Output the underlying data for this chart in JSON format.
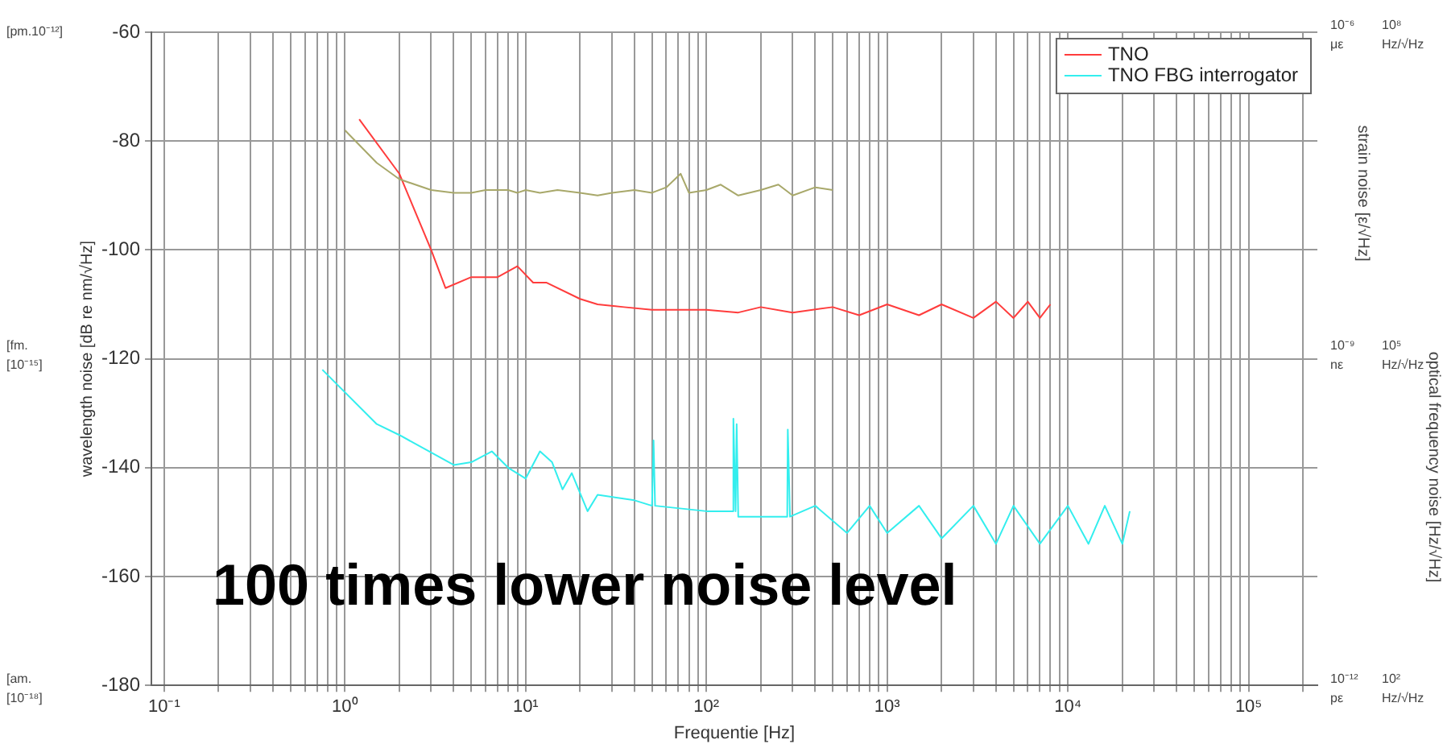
{
  "chart_data": {
    "type": "line",
    "xlabel": "Frequentie [Hz]",
    "ylabel": "wavelength noise [dB re nm/√Hz]",
    "y2label": "strain noise [ε/√Hz]",
    "y3label": "optical frequency noise [Hz/√Hz]",
    "log": "x",
    "grid": true,
    "legend": "top right",
    "marker": "none",
    "line_style": "solid",
    "xlim": [
      0.085,
      240000
    ],
    "xticks": [
      {
        "value": 0.1,
        "label": "10⁻¹"
      },
      {
        "value": 0.2,
        "label": null
      },
      {
        "value": 0.3,
        "label": null
      },
      {
        "value": 0.4,
        "label": null
      },
      {
        "value": 0.5,
        "label": null
      },
      {
        "value": 0.6,
        "label": null
      },
      {
        "value": 0.7,
        "label": null
      },
      {
        "value": 0.8,
        "label": null
      },
      {
        "value": 0.9,
        "label": null
      },
      {
        "value": 1,
        "label": "10⁰"
      },
      {
        "value": 2,
        "label": null
      },
      {
        "value": 3,
        "label": null
      },
      {
        "value": 4,
        "label": null
      },
      {
        "value": 5,
        "label": null
      },
      {
        "value": 6,
        "label": null
      },
      {
        "value": 7,
        "label": null
      },
      {
        "value": 8,
        "label": null
      },
      {
        "value": 9,
        "label": null
      },
      {
        "value": 10,
        "label": "10¹"
      },
      {
        "value": 20,
        "label": null
      },
      {
        "value": 30,
        "label": null
      },
      {
        "value": 40,
        "label": null
      },
      {
        "value": 50,
        "label": null
      },
      {
        "value": 60,
        "label": null
      },
      {
        "value": 70,
        "label": null
      },
      {
        "value": 80,
        "label": null
      },
      {
        "value": 90,
        "label": null
      },
      {
        "value": 100,
        "label": "10²"
      },
      {
        "value": 200,
        "label": null
      },
      {
        "value": 300,
        "label": null
      },
      {
        "value": 400,
        "label": null
      },
      {
        "value": 500,
        "label": null
      },
      {
        "value": 600,
        "label": null
      },
      {
        "value": 700,
        "label": null
      },
      {
        "value": 800,
        "label": null
      },
      {
        "value": 900,
        "label": null
      },
      {
        "value": 1000,
        "label": "10³"
      },
      {
        "value": 2000,
        "label": null
      },
      {
        "value": 3000,
        "label": null
      },
      {
        "value": 4000,
        "label": null
      },
      {
        "value": 5000,
        "label": null
      },
      {
        "value": 6000,
        "label": null
      },
      {
        "value": 7000,
        "label": null
      },
      {
        "value": 8000,
        "label": null
      },
      {
        "value": 9000,
        "label": null
      },
      {
        "value": 10000,
        "label": "10⁴"
      },
      {
        "value": 20000,
        "label": null
      },
      {
        "value": 30000,
        "label": null
      },
      {
        "value": 40000,
        "label": null
      },
      {
        "value": 50000,
        "label": null
      },
      {
        "value": 60000,
        "label": null
      },
      {
        "value": 70000,
        "label": null
      },
      {
        "value": 80000,
        "label": null
      },
      {
        "value": 90000,
        "label": null
      },
      {
        "value": 100000,
        "label": "10⁵"
      },
      {
        "value": 200000,
        "label": null
      }
    ],
    "ylim": [
      -180,
      -60
    ],
    "yticks": [
      -180,
      -160,
      -140,
      -120,
      -100,
      -80,
      -60
    ],
    "annotations": [
      "100 times lower noise level",
      "[pm.10⁻¹²]",
      "[fm.",
      "[10⁻¹⁵]",
      "[am.",
      "[10⁻¹⁸]",
      "10⁻⁶",
      "με",
      "10⁻⁹",
      "nε",
      "10⁻¹²",
      "pε",
      "10⁸",
      "Hz/√Hz",
      "10⁵",
      "Hz/√Hz",
      "10²",
      "Hz/√Hz"
    ],
    "series": [
      {
        "color": "#a8a86a",
        "x": [
          1,
          1.5,
          2,
          3,
          4,
          5,
          6,
          8,
          9,
          10,
          12,
          15,
          20,
          25,
          30,
          40,
          50,
          60,
          72,
          80,
          100,
          120,
          150,
          200,
          250,
          300,
          400,
          500
        ],
        "values": [
          -78,
          -84,
          -87,
          -89,
          -89.5,
          -89.5,
          -89,
          -89,
          -89.5,
          -89,
          -89.5,
          -89,
          -89.5,
          -90,
          -89.5,
          -89,
          -89.5,
          -88.5,
          -86,
          -89.5,
          -89,
          -88,
          -90,
          -89,
          -88,
          -90,
          -88.5,
          -89
        ]
      },
      {
        "name": "TNO",
        "color": "#ff3c3c",
        "x": [
          1.2,
          2,
          3,
          3.6,
          5,
          7,
          9,
          11,
          13,
          20,
          25,
          35,
          50,
          70,
          100,
          150,
          200,
          300,
          500,
          700,
          1000,
          1500,
          2000,
          3000,
          4000,
          5000,
          6000,
          7000,
          8000
        ],
        "values": [
          -76,
          -86,
          -100,
          -107,
          -105,
          -105,
          -103,
          -106,
          -106,
          -109,
          -110,
          -110.5,
          -111,
          -111,
          -111,
          -111.5,
          -110.5,
          -111.5,
          -110.5,
          -112,
          -110,
          -112,
          -110,
          -112.5,
          -109.5,
          -112.5,
          -109.5,
          -112.5,
          -110
        ]
      },
      {
        "name": "TNO FBG interrogator",
        "color": "#33eeee",
        "x": [
          0.75,
          1.5,
          2,
          4,
          5,
          6.5,
          8,
          10,
          12,
          14,
          16,
          18,
          22,
          25,
          40,
          50,
          51,
          52,
          100,
          140,
          141,
          145,
          147,
          150,
          280,
          282,
          290,
          400,
          600,
          800,
          1000,
          1500,
          2000,
          3000,
          4000,
          5000,
          7000,
          10000,
          13000,
          16000,
          20000,
          22000
        ],
        "values": [
          -122,
          -132,
          -134,
          -139.5,
          -139,
          -137,
          -140,
          -142,
          -137,
          -139,
          -144,
          -141,
          -148,
          -145,
          -146,
          -147,
          -135,
          -147,
          -148,
          -148,
          -131,
          -148,
          -132,
          -149,
          -149,
          -133,
          -149,
          -147,
          -152,
          -147,
          -152,
          -147,
          -153,
          -147,
          -154,
          -147,
          -154,
          -147,
          -154,
          -147,
          -154,
          -148
        ]
      }
    ]
  }
}
